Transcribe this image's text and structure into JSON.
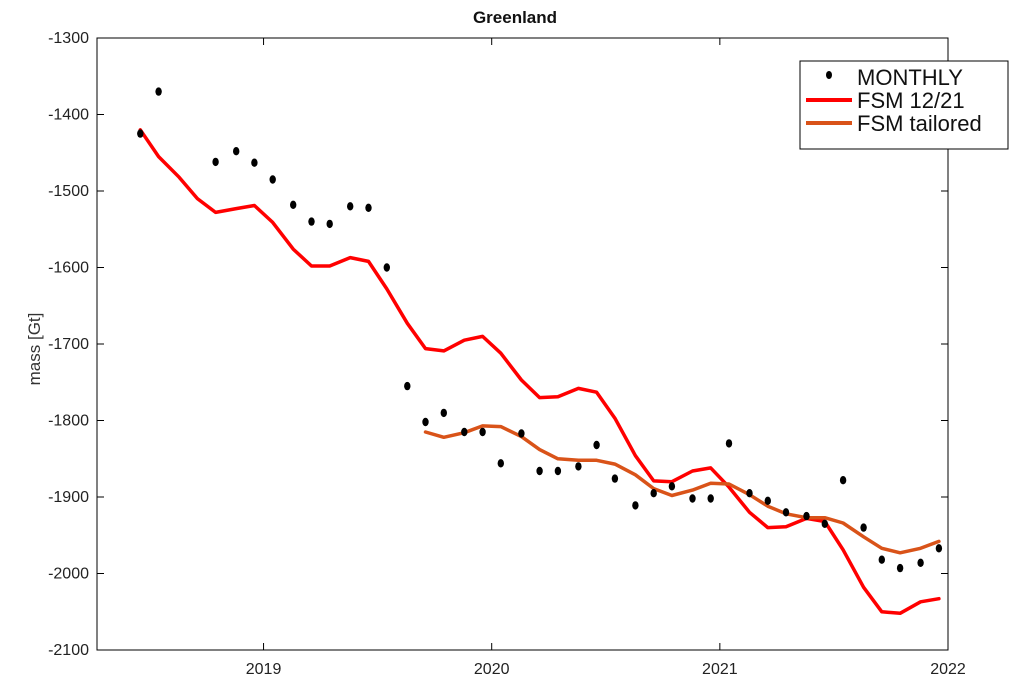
{
  "chart_data": {
    "type": "line",
    "title": "Greenland",
    "xlabel": "",
    "ylabel": "mass [Gt]",
    "xlim": [
      2018.27,
      2022.0
    ],
    "ylim": [
      -2100,
      -1300
    ],
    "xticks": [
      2019,
      2020,
      2021,
      2022
    ],
    "xtick_labels": [
      "2019",
      "2020",
      "2021",
      "2022"
    ],
    "yticks": [
      -1300,
      -1400,
      -1500,
      -1600,
      -1700,
      -1800,
      -1900,
      -2000,
      -2100
    ],
    "ytick_labels": [
      "-1300",
      "-1400",
      "-1500",
      "-1600",
      "-1700",
      "-1800",
      "-1900",
      "-2000",
      "-2100"
    ],
    "grid": false,
    "legend_position": "top-right",
    "series": [
      {
        "name": "MONTHLY",
        "kind": "scatter",
        "color": "#000000",
        "x": [
          2018.46,
          2018.54,
          2018.79,
          2018.88,
          2018.96,
          2019.04,
          2019.13,
          2019.21,
          2019.29,
          2019.38,
          2019.46,
          2019.54,
          2019.63,
          2019.71,
          2019.79,
          2019.88,
          2019.96,
          2020.04,
          2020.13,
          2020.21,
          2020.29,
          2020.38,
          2020.46,
          2020.54,
          2020.63,
          2020.71,
          2020.79,
          2020.88,
          2020.96,
          2021.04,
          2021.13,
          2021.21,
          2021.29,
          2021.38,
          2021.46,
          2021.54,
          2021.63,
          2021.71,
          2021.79,
          2021.88,
          2021.96
        ],
        "y": [
          -1425,
          -1370,
          -1462,
          -1448,
          -1463,
          -1485,
          -1518,
          -1540,
          -1543,
          -1520,
          -1522,
          -1600,
          -1755,
          -1802,
          -1790,
          -1815,
          -1815,
          -1856,
          -1817,
          -1866,
          -1866,
          -1860,
          -1832,
          -1876,
          -1911,
          -1895,
          -1886,
          -1902,
          -1902,
          -1830,
          -1895,
          -1905,
          -1920,
          -1925,
          -1935,
          -1878,
          -1940,
          -1982,
          -1993,
          -1986,
          -1967
        ]
      },
      {
        "name": "FSM 12/21",
        "kind": "line",
        "color": "#ff0000",
        "x": [
          2018.46,
          2018.54,
          2018.63,
          2018.71,
          2018.79,
          2018.88,
          2018.96,
          2019.04,
          2019.13,
          2019.21,
          2019.29,
          2019.38,
          2019.46,
          2019.54,
          2019.63,
          2019.71,
          2019.79,
          2019.88,
          2019.96,
          2020.04,
          2020.13,
          2020.21,
          2020.29,
          2020.38,
          2020.46,
          2020.54,
          2020.63,
          2020.71,
          2020.79,
          2020.88,
          2020.96,
          2021.04,
          2021.13,
          2021.21,
          2021.29,
          2021.38,
          2021.46,
          2021.54,
          2021.63,
          2021.71,
          2021.79,
          2021.88,
          2021.96
        ],
        "y": [
          -1420,
          -1455,
          -1482,
          -1510,
          -1528,
          -1523,
          -1519,
          -1541,
          -1576,
          -1598,
          -1598,
          -1587,
          -1592,
          -1628,
          -1673,
          -1706,
          -1709,
          -1695,
          -1690,
          -1712,
          -1747,
          -1770,
          -1769,
          -1758,
          -1763,
          -1797,
          -1846,
          -1879,
          -1880,
          -1866,
          -1862,
          -1887,
          -1920,
          -1940,
          -1939,
          -1928,
          -1932,
          -1969,
          -2018,
          -2050,
          -2052,
          -2037,
          -2033
        ]
      },
      {
        "name": "FSM tailored",
        "kind": "line",
        "color": "#d95319",
        "x": [
          2019.71,
          2019.79,
          2019.88,
          2019.96,
          2020.04,
          2020.13,
          2020.21,
          2020.29,
          2020.38,
          2020.46,
          2020.54,
          2020.63,
          2020.71,
          2020.79,
          2020.88,
          2020.96,
          2021.04,
          2021.13,
          2021.21,
          2021.29,
          2021.38,
          2021.46,
          2021.54,
          2021.63,
          2021.71,
          2021.79,
          2021.88,
          2021.96
        ],
        "y": [
          -1815,
          -1822,
          -1816,
          -1807,
          -1808,
          -1821,
          -1838,
          -1850,
          -1852,
          -1852,
          -1857,
          -1871,
          -1889,
          -1898,
          -1891,
          -1882,
          -1883,
          -1897,
          -1912,
          -1922,
          -1927,
          -1927,
          -1934,
          -1952,
          -1967,
          -1973,
          -1967,
          -1958
        ]
      }
    ]
  }
}
